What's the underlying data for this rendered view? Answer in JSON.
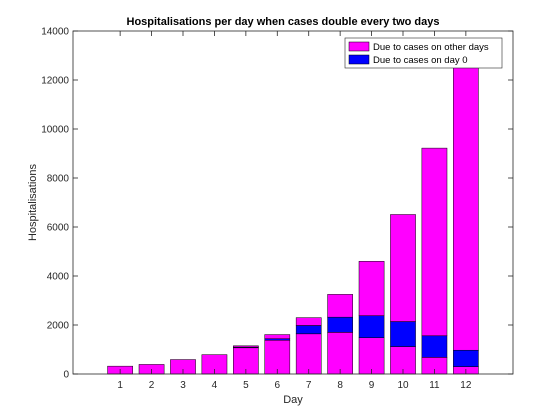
{
  "chart_data": {
    "type": "bar",
    "stacked": true,
    "title": "Hospitalisations per day when cases double every two days",
    "xlabel": "Day",
    "ylabel": "Hospitalisations",
    "categories": [
      "1",
      "2",
      "3",
      "4",
      "5",
      "6",
      "7",
      "8",
      "9",
      "10",
      "11",
      "12"
    ],
    "x_ticks": [
      "1",
      "2",
      "3",
      "4",
      "5",
      "6",
      "7",
      "8",
      "9",
      "10",
      "11",
      "12"
    ],
    "xlim": [
      -0.5,
      13.5
    ],
    "ylim": [
      0,
      14000
    ],
    "y_ticks": [
      0,
      2000,
      4000,
      6000,
      8000,
      10000,
      12000,
      14000
    ],
    "y_tick_labels": [
      "0",
      "2000",
      "4000",
      "6000",
      "8000",
      "10000",
      "12000",
      "14000"
    ],
    "grid": false,
    "legend_position": "top-right",
    "series": [
      {
        "name": "Due to cases on other days",
        "color": "#ff00ff",
        "values": [
          320,
          390,
          590,
          790,
          1070,
          1380,
          1640,
          1700,
          1480,
          1120,
          680,
          300
        ]
      },
      {
        "name": "Due to cases on day 0",
        "color": "#0000ff",
        "values": [
          0,
          0,
          0,
          0,
          30,
          60,
          340,
          620,
          900,
          1020,
          880,
          670
        ]
      },
      {
        "name": "Due to cases on other days",
        "color": "#ff00ff",
        "values": [
          0,
          0,
          0,
          0,
          50,
          170,
          320,
          930,
          2220,
          4370,
          7660,
          11730
        ]
      }
    ],
    "totals": [
      320,
      390,
      590,
      790,
      1150,
      1610,
      2300,
      3250,
      4600,
      6510,
      9220,
      12700
    ]
  }
}
